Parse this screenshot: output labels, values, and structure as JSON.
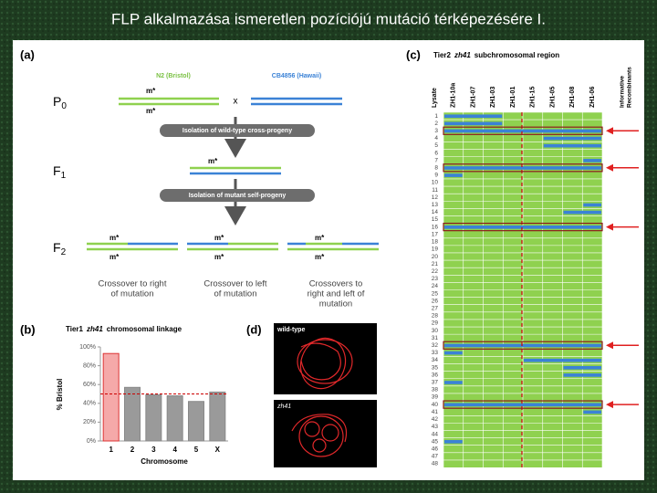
{
  "title": "FLP alkalmazása ismeretlen pozíciójú mutáció térképezésére I.",
  "panel_a": {
    "label": "(a)",
    "strain_1": "N2 (Bristol)",
    "strain_2": "CB4856 (Hawaii)",
    "generations": [
      {
        "letter": "P",
        "index": "0"
      },
      {
        "letter": "F",
        "index": "1"
      },
      {
        "letter": "F",
        "index": "2"
      }
    ],
    "cross": "x",
    "mutation": "m*",
    "steps": [
      "Isolation of wild-type cross-progeny",
      "Isolation of mutant self-progeny"
    ],
    "captions": [
      [
        "Crossover to right",
        "of mutation"
      ],
      [
        "Crossover to left",
        "of mutation"
      ],
      [
        "Crossovers to",
        "right and left of",
        "mutation"
      ]
    ]
  },
  "panel_b": {
    "label": "(b)",
    "tier": "Tier1",
    "gene": "zh41",
    "title": "chromosomal linkage",
    "chart_data": {
      "type": "bar",
      "categories": [
        "1",
        "2",
        "3",
        "4",
        "5",
        "X"
      ],
      "values": [
        93,
        57,
        49,
        48,
        42,
        52
      ],
      "colors": [
        "#f5a9a9",
        "#9a9a9a",
        "#9a9a9a",
        "#9a9a9a",
        "#9a9a9a",
        "#9a9a9a"
      ],
      "ylim": [
        0,
        100
      ],
      "yticks": [
        {
          "value": 0,
          "label": "0%"
        },
        {
          "value": 20,
          "label": "20%"
        },
        {
          "value": 40,
          "label": "40%"
        },
        {
          "value": 60,
          "label": "60%"
        },
        {
          "value": 80,
          "label": "80%"
        },
        {
          "value": 100,
          "label": "100%"
        }
      ],
      "ylabel": "% Bristol",
      "xlabel": "Chromosome",
      "threshold": 50
    }
  },
  "panel_c": {
    "label": "(c)",
    "tier": "Tier2",
    "gene": "zh41",
    "title": "subchromosomal region",
    "row_header": "Lysate",
    "columns": [
      "ZH1-10a",
      "ZH1-07",
      "ZH1-03",
      "ZH1-01",
      "ZH1-15",
      "ZH1-05",
      "ZH1-08",
      "ZH1-06"
    ],
    "informative_header": [
      "Informative",
      "Recombinants"
    ],
    "lysates": [
      1,
      2,
      3,
      4,
      5,
      6,
      7,
      8,
      9,
      10,
      11,
      12,
      13,
      14,
      15,
      16,
      17,
      18,
      19,
      20,
      21,
      22,
      23,
      24,
      25,
      26,
      27,
      28,
      29,
      30,
      31,
      32,
      33,
      34,
      35,
      36,
      37,
      38,
      39,
      40,
      41,
      42,
      43,
      44,
      45,
      46,
      47,
      48
    ],
    "informative_rows": [
      3,
      8,
      16,
      32,
      40
    ],
    "hawaii_segments": [
      [
        1,
        0,
        2
      ],
      [
        2,
        0,
        2
      ],
      [
        3,
        0,
        7
      ],
      [
        4,
        5,
        7
      ],
      [
        5,
        5,
        7
      ],
      [
        7,
        7,
        7
      ],
      [
        8,
        0,
        7
      ],
      [
        9,
        0,
        0
      ],
      [
        13,
        7,
        7
      ],
      [
        14,
        6,
        7
      ],
      [
        16,
        0,
        7
      ],
      [
        32,
        0,
        7
      ],
      [
        33,
        0,
        0
      ],
      [
        34,
        4,
        7
      ],
      [
        35,
        6,
        7
      ],
      [
        36,
        6,
        7
      ],
      [
        37,
        0,
        0
      ],
      [
        40,
        0,
        7
      ],
      [
        41,
        7,
        7
      ],
      [
        45,
        0,
        0
      ]
    ]
  },
  "panel_d": {
    "label": "(d)",
    "images": [
      "wild-type",
      "zh41"
    ]
  }
}
